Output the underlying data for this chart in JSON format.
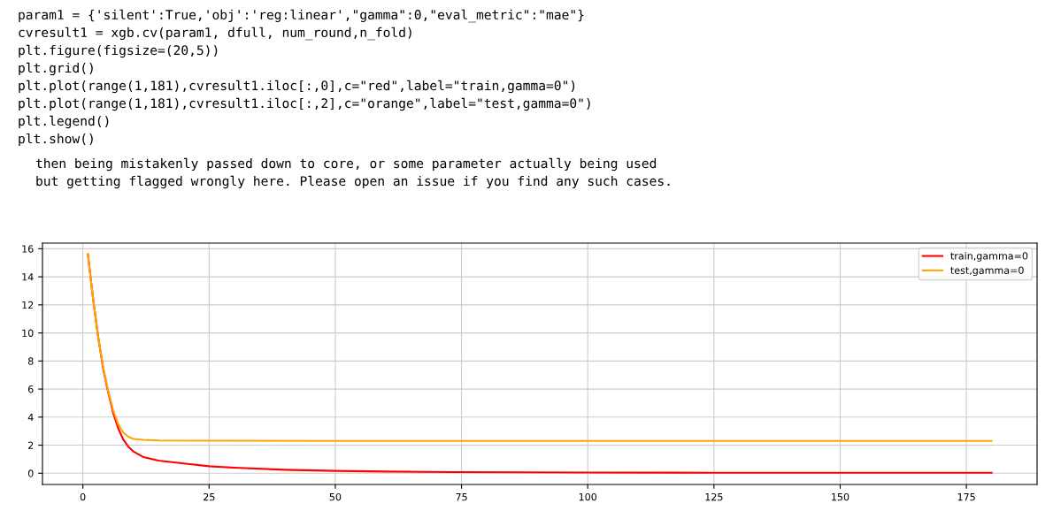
{
  "chart_data": {
    "type": "line",
    "annotations": [
      "param1 = {'silent':True,'obj':'reg:linear',\"gamma\":0,\"eval_metric\":\"mae\"}",
      "cvresult1 = xgb.cv(param1, dfull, num_round,n_fold)",
      "plt.figure(figsize=(20,5))",
      "plt.grid()",
      "plt.plot(range(1,181),cvresult1.iloc[:,0],c=\"red\",label=\"train,gamma=0\")",
      "plt.plot(range(1,181),cvresult1.iloc[:,2],c=\"orange\",label=\"test,gamma=0\")",
      "plt.legend()",
      "plt.show()",
      "then being mistakenly passed down to core, or some parameter actually being used",
      "but getting flagged wrongly here. Please open an issue if you find any such cases."
    ],
    "series": [
      {
        "name": "train,gamma=0",
        "color": "#ff0000",
        "x": [
          1,
          2,
          3,
          4,
          5,
          6,
          7,
          8,
          9,
          10,
          12,
          15,
          20,
          25,
          30,
          40,
          50,
          60,
          75,
          100,
          125,
          150,
          180
        ],
        "values": [
          15.6,
          12.5,
          9.8,
          7.5,
          5.8,
          4.3,
          3.2,
          2.4,
          1.9,
          1.55,
          1.15,
          0.9,
          0.7,
          0.5,
          0.4,
          0.25,
          0.17,
          0.12,
          0.08,
          0.05,
          0.04,
          0.03,
          0.03
        ]
      },
      {
        "name": "test,gamma=0",
        "color": "#ffa500",
        "x": [
          1,
          2,
          3,
          4,
          5,
          6,
          7,
          8,
          9,
          10,
          12,
          15,
          25,
          50,
          100,
          180
        ],
        "values": [
          15.6,
          12.5,
          9.8,
          7.6,
          5.9,
          4.5,
          3.5,
          2.9,
          2.6,
          2.45,
          2.38,
          2.33,
          2.32,
          2.3,
          2.3,
          2.3
        ]
      }
    ],
    "xlim": [
      -8,
      189
    ],
    "xticks": [
      0,
      25,
      50,
      75,
      100,
      125,
      150,
      175
    ],
    "ylim": [
      -0.8,
      16.4
    ],
    "yticks": [
      0,
      2,
      4,
      6,
      8,
      10,
      12,
      14,
      16
    ],
    "grid": true,
    "legend": "top right"
  }
}
